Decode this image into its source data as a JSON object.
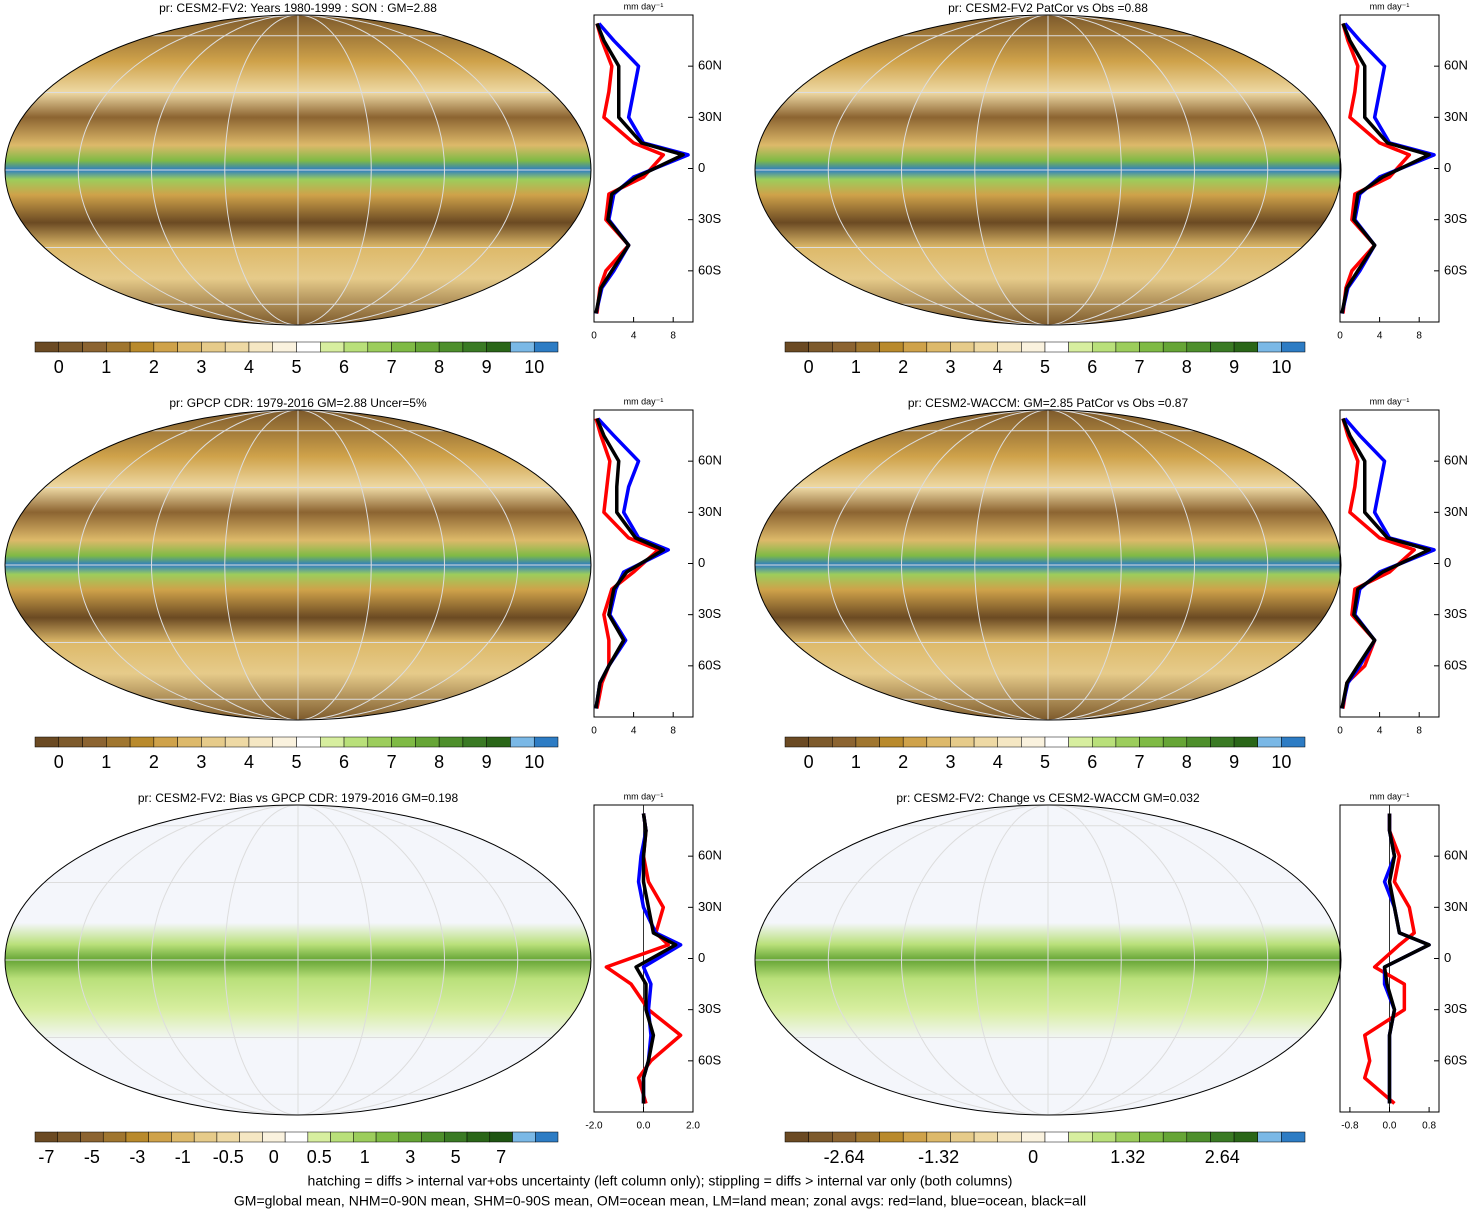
{
  "panels": [
    {
      "title": "pr: CESM2-FV2: Years 1980-1999 : SON : GM=2.88",
      "kind": "climatology",
      "colorbar": {
        "labels": [
          0,
          1,
          2,
          3,
          4,
          5,
          6,
          7,
          8,
          9,
          10
        ],
        "colors": [
          "#6b4a23",
          "#7d5a2c",
          "#8c6431",
          "#a0762f",
          "#b98a2c",
          "#cfa24a",
          "#ddb96a",
          "#e6cb8a",
          "#eed9a4",
          "#f5e7c3",
          "#faf2de",
          "#ffffff",
          "#d7ee9f",
          "#b9e07a",
          "#9ccd5c",
          "#7fba45",
          "#66a536",
          "#4e8f2c",
          "#3a7a24",
          "#2a6618",
          "#7ab8e6",
          "#2d7cc4"
        ]
      },
      "zonal": {
        "unit": "mm day⁻¹",
        "xlim": [
          0,
          10
        ],
        "xticks": [
          0,
          4,
          8
        ],
        "ylim": [
          -90,
          90
        ],
        "yticks": [
          {
            "value": 60,
            "label": "60N"
          },
          {
            "value": 30,
            "label": "30N"
          },
          0,
          {
            "value": -30,
            "label": "30S"
          },
          {
            "value": -60,
            "label": "60S"
          }
        ],
        "lat": [
          -85,
          -70,
          -60,
          -45,
          -30,
          -15,
          -5,
          8,
          15,
          30,
          45,
          60,
          75,
          85
        ],
        "series": [
          {
            "color": "#ff0000",
            "values": [
              0.3,
              0.6,
              1.2,
              3.5,
              1.2,
              1.5,
              5,
              7,
              4,
              1,
              1.5,
              1.8,
              0.8,
              0.3
            ]
          },
          {
            "color": "#0000ff",
            "values": [
              0.2,
              0.8,
              2,
              3.5,
              1.5,
              2,
              4,
              9.5,
              5,
              3.5,
              4,
              4.5,
              2,
              0.5
            ]
          },
          {
            "color": "#000000",
            "values": [
              0.2,
              0.7,
              1.8,
              3.5,
              1.4,
              1.8,
              4.3,
              9,
              4.8,
              2.5,
              2.5,
              2.5,
              1,
              0.3
            ]
          }
        ]
      }
    },
    {
      "title": "pr: CESM2-FV2 PatCor vs Obs =0.88",
      "kind": "climatology",
      "colorbar": {
        "labels": [
          0,
          1,
          2,
          3,
          4,
          5,
          6,
          7,
          8,
          9,
          10
        ],
        "colors": [
          "#6b4a23",
          "#7d5a2c",
          "#8c6431",
          "#a0762f",
          "#b98a2c",
          "#cfa24a",
          "#ddb96a",
          "#e6cb8a",
          "#eed9a4",
          "#f5e7c3",
          "#faf2de",
          "#ffffff",
          "#d7ee9f",
          "#b9e07a",
          "#9ccd5c",
          "#7fba45",
          "#66a536",
          "#4e8f2c",
          "#3a7a24",
          "#2a6618",
          "#7ab8e6",
          "#2d7cc4"
        ]
      },
      "zonal": {
        "unit": "mm day⁻¹",
        "xlim": [
          0,
          10
        ],
        "xticks": [
          0,
          4,
          8
        ],
        "ylim": [
          -90,
          90
        ],
        "yticks": [
          {
            "value": 60,
            "label": "60N"
          },
          {
            "value": 30,
            "label": "30N"
          },
          0,
          {
            "value": -30,
            "label": "30S"
          },
          {
            "value": -60,
            "label": "60S"
          }
        ],
        "lat": [
          -85,
          -70,
          -60,
          -45,
          -30,
          -15,
          -5,
          8,
          15,
          30,
          45,
          60,
          75,
          85
        ],
        "series": [
          {
            "color": "#ff0000",
            "values": [
              0.3,
              0.6,
              1.2,
              3.5,
              1.2,
              1.5,
              5,
              7,
              4,
              1,
              1.5,
              1.8,
              0.8,
              0.3
            ]
          },
          {
            "color": "#0000ff",
            "values": [
              0.2,
              0.8,
              2,
              3.5,
              1.5,
              2,
              4,
              9.5,
              5,
              3.5,
              4,
              4.5,
              2,
              0.5
            ]
          },
          {
            "color": "#000000",
            "values": [
              0.2,
              0.7,
              1.8,
              3.5,
              1.4,
              1.8,
              4.3,
              9,
              4.8,
              2.5,
              2.5,
              2.5,
              1,
              0.3
            ]
          }
        ]
      }
    },
    {
      "title": "pr: GPCP CDR: 1979-2016 GM=2.88 Uncer=5%",
      "kind": "climatology",
      "colorbar": {
        "labels": [
          0,
          1,
          2,
          3,
          4,
          5,
          6,
          7,
          8,
          9,
          10
        ],
        "colors": [
          "#6b4a23",
          "#7d5a2c",
          "#8c6431",
          "#a0762f",
          "#b98a2c",
          "#cfa24a",
          "#ddb96a",
          "#e6cb8a",
          "#eed9a4",
          "#f5e7c3",
          "#faf2de",
          "#ffffff",
          "#d7ee9f",
          "#b9e07a",
          "#9ccd5c",
          "#7fba45",
          "#66a536",
          "#4e8f2c",
          "#3a7a24",
          "#2a6618",
          "#7ab8e6",
          "#2d7cc4"
        ]
      },
      "zonal": {
        "unit": "mm day⁻¹",
        "xlim": [
          0,
          10
        ],
        "xticks": [
          0,
          4,
          8
        ],
        "ylim": [
          -90,
          90
        ],
        "yticks": [
          {
            "value": 60,
            "label": "60N"
          },
          {
            "value": 30,
            "label": "30N"
          },
          0,
          {
            "value": -30,
            "label": "30S"
          },
          {
            "value": -60,
            "label": "60S"
          }
        ],
        "lat": [
          -85,
          -70,
          -60,
          -45,
          -30,
          -15,
          -5,
          8,
          15,
          30,
          45,
          60,
          75,
          85
        ],
        "series": [
          {
            "color": "#ff0000",
            "values": [
              0.3,
              0.8,
              1.5,
              1.5,
              1,
              1.8,
              4,
              6.5,
              3.5,
              1,
              1.3,
              1.6,
              0.7,
              0.2
            ]
          },
          {
            "color": "#0000ff",
            "values": [
              0.2,
              0.6,
              1.5,
              3.2,
              1.6,
              2.2,
              3,
              7.5,
              4.5,
              3,
              3.5,
              4.5,
              2,
              0.4
            ]
          },
          {
            "color": "#000000",
            "values": [
              0.2,
              0.6,
              1.5,
              3,
              1.5,
              2,
              3.3,
              7,
              4.2,
              2.3,
              2.3,
              2.5,
              1,
              0.3
            ]
          }
        ]
      }
    },
    {
      "title": "pr: CESM2-WACCM: GM=2.85 PatCor vs Obs =0.87",
      "kind": "climatology",
      "colorbar": {
        "labels": [
          0,
          1,
          2,
          3,
          4,
          5,
          6,
          7,
          8,
          9,
          10
        ],
        "colors": [
          "#6b4a23",
          "#7d5a2c",
          "#8c6431",
          "#a0762f",
          "#b98a2c",
          "#cfa24a",
          "#ddb96a",
          "#e6cb8a",
          "#eed9a4",
          "#f5e7c3",
          "#faf2de",
          "#ffffff",
          "#d7ee9f",
          "#b9e07a",
          "#9ccd5c",
          "#7fba45",
          "#66a536",
          "#4e8f2c",
          "#3a7a24",
          "#2a6618",
          "#7ab8e6",
          "#2d7cc4"
        ]
      },
      "zonal": {
        "unit": "mm day⁻¹",
        "xlim": [
          0,
          10
        ],
        "xticks": [
          0,
          4,
          8
        ],
        "ylim": [
          -90,
          90
        ],
        "yticks": [
          {
            "value": 60,
            "label": "60N"
          },
          {
            "value": 30,
            "label": "30N"
          },
          0,
          {
            "value": -30,
            "label": "30S"
          },
          {
            "value": -60,
            "label": "60S"
          }
        ],
        "lat": [
          -85,
          -70,
          -60,
          -45,
          -30,
          -15,
          -5,
          8,
          15,
          30,
          45,
          60,
          75,
          85
        ],
        "series": [
          {
            "color": "#ff0000",
            "values": [
              0.3,
              0.7,
              2.5,
              3.5,
              1.2,
              1.5,
              5,
              7.5,
              4,
              1,
              1.5,
              1.8,
              0.8,
              0.3
            ]
          },
          {
            "color": "#0000ff",
            "values": [
              0.2,
              0.8,
              2,
              3.5,
              1.5,
              2,
              4,
              9.5,
              5,
              3.5,
              4,
              4.5,
              2,
              0.5
            ]
          },
          {
            "color": "#000000",
            "values": [
              0.2,
              0.7,
              1.8,
              3.5,
              1.4,
              1.8,
              4.3,
              9,
              4.8,
              2.5,
              2.5,
              2.5,
              1,
              0.3
            ]
          }
        ]
      }
    },
    {
      "title": "pr: CESM2-FV2: Bias vs GPCP CDR: 1979-2016  GM=0.198",
      "kind": "difference",
      "colorbar": {
        "labels": [
          -7,
          -5,
          -3,
          -1,
          -0.5,
          0,
          0.5,
          1,
          3,
          5,
          7
        ],
        "colors": [
          "#6b4a23",
          "#7d5a2c",
          "#8c6431",
          "#a0762f",
          "#b98a2c",
          "#cfa24a",
          "#ddb96a",
          "#e6cb8a",
          "#eed9a4",
          "#f5e7c3",
          "#faf2de",
          "#ffffff",
          "#d7ee9f",
          "#b9e07a",
          "#9ccd5c",
          "#7fba45",
          "#66a536",
          "#4e8f2c",
          "#3a7a24",
          "#2a6618",
          "#1f5512",
          "#7ab8e6",
          "#2d7cc4"
        ]
      },
      "zonal": {
        "unit": "mm day⁻¹",
        "xlim": [
          -2,
          2
        ],
        "xticks": [
          {
            "value": -2,
            "label": "-2.0"
          },
          {
            "value": 0,
            "label": "0.0"
          },
          {
            "value": 2,
            "label": "2.0"
          }
        ],
        "ylim": [
          -90,
          90
        ],
        "yticks": [
          {
            "value": 60,
            "label": "60N"
          },
          {
            "value": 30,
            "label": "30N"
          },
          0,
          {
            "value": -30,
            "label": "30S"
          },
          {
            "value": -60,
            "label": "60S"
          }
        ],
        "lat": [
          -85,
          -70,
          -60,
          -45,
          -30,
          -15,
          -5,
          8,
          15,
          30,
          45,
          60,
          75,
          85
        ],
        "series": [
          {
            "color": "#ff0000",
            "values": [
              0.1,
              -0.2,
              0.3,
              1.5,
              0.2,
              -0.5,
              -1.5,
              1,
              0.5,
              0.8,
              0.2,
              0,
              0.1,
              0
            ]
          },
          {
            "color": "#0000ff",
            "values": [
              0,
              0,
              0.2,
              0.3,
              0.2,
              0.3,
              0,
              1.5,
              0.5,
              0,
              -0.2,
              -0.1,
              0.1,
              0
            ]
          },
          {
            "color": "#000000",
            "values": [
              0,
              0,
              0.2,
              0.4,
              0.1,
              0.1,
              -0.3,
              1.3,
              0.4,
              0.2,
              0,
              0,
              0.1,
              0
            ]
          }
        ]
      }
    },
    {
      "title": "pr: CESM2-FV2: Change vs CESM2-WACCM GM=0.032",
      "kind": "difference",
      "colorbar": {
        "labels": [
          -2.64,
          -1.32,
          0,
          1.32,
          2.64
        ],
        "colors": [
          "#6b4a23",
          "#7d5a2c",
          "#8c6431",
          "#a0762f",
          "#b98a2c",
          "#cfa24a",
          "#ddb96a",
          "#e6cb8a",
          "#eed9a4",
          "#f5e7c3",
          "#faf2de",
          "#ffffff",
          "#d7ee9f",
          "#b9e07a",
          "#9ccd5c",
          "#7fba45",
          "#66a536",
          "#4e8f2c",
          "#3a7a24",
          "#2a6618",
          "#7ab8e6",
          "#2d7cc4"
        ]
      },
      "zonal": {
        "unit": "mm day⁻¹",
        "xlim": [
          -1,
          1
        ],
        "xticks": [
          -0.8,
          {
            "value": 0,
            "label": "0.0"
          },
          0.8
        ],
        "ylim": [
          -90,
          90
        ],
        "yticks": [
          {
            "value": 60,
            "label": "60N"
          },
          {
            "value": 30,
            "label": "30N"
          },
          0,
          {
            "value": -30,
            "label": "30S"
          },
          {
            "value": -60,
            "label": "60S"
          }
        ],
        "lat": [
          -85,
          -70,
          -60,
          -45,
          -30,
          -15,
          -5,
          8,
          15,
          30,
          45,
          60,
          75,
          85
        ],
        "series": [
          {
            "color": "#ff0000",
            "values": [
              0.1,
              -0.5,
              -0.4,
              -0.5,
              0.3,
              0.3,
              -0.3,
              0.2,
              0.5,
              0.4,
              0.1,
              0.2,
              0,
              0
            ]
          },
          {
            "color": "#0000ff",
            "values": [
              0,
              0,
              0,
              0,
              0.1,
              -0.1,
              -0.1,
              0.8,
              0.2,
              0.1,
              -0.1,
              0.1,
              0,
              0
            ]
          },
          {
            "color": "#000000",
            "values": [
              0,
              0,
              0,
              0,
              0.1,
              -0.05,
              -0.1,
              0.8,
              0.2,
              0.1,
              0,
              0.1,
              0,
              0
            ]
          }
        ]
      }
    }
  ],
  "footer": [
    "hatching = diffs > internal var+obs uncertainty (left column only); stippling = diffs > internal var only (both columns)",
    "GM=global mean, NHM=0-90N mean, SHM=0-90S mean, OM=ocean mean, LM=land mean; zonal avgs: red=land, blue=ocean, black=all"
  ]
}
